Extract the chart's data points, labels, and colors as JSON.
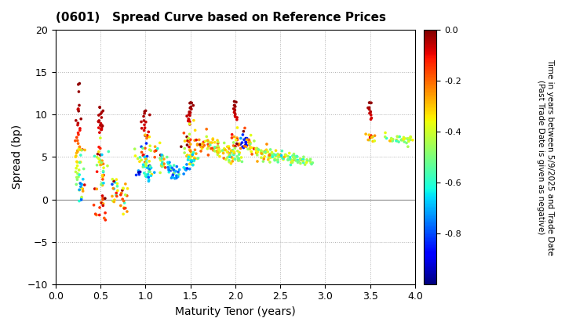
{
  "title": "(0601)   Spread Curve based on Reference Prices",
  "xlabel": "Maturity Tenor (years)",
  "ylabel": "Spread (bp)",
  "colorbar_label": "Time in years between 5/9/2025 and Trade Date\n(Past Trade Date is given as negative)",
  "xlim": [
    0.0,
    4.0
  ],
  "ylim": [
    -10.0,
    20.0
  ],
  "xticks": [
    0.0,
    0.5,
    1.0,
    1.5,
    2.0,
    2.5,
    3.0,
    3.5,
    4.0
  ],
  "yticks": [
    -10.0,
    -5.0,
    0.0,
    5.0,
    10.0,
    15.0,
    20.0
  ],
  "cmap": "jet",
  "vmin": -1.0,
  "vmax": 0.0,
  "colorbar_ticks": [
    0.0,
    -0.2,
    -0.4,
    -0.6,
    -0.8
  ],
  "dot_size": 7,
  "background_color": "#ffffff",
  "grid_color": "#b0b0b0",
  "zero_line_color": "#888888"
}
